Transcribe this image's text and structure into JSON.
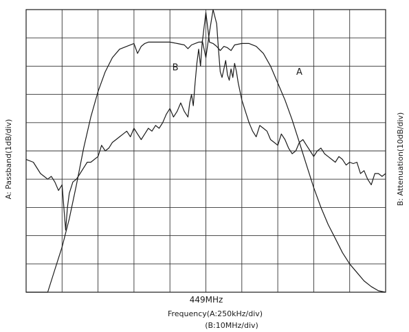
{
  "chart_data": {
    "type": "line",
    "center_label": "449MHz",
    "xlabel_line1": "Frequency(A:250kHz/div)",
    "xlabel_line2": "(B:10MHz/div)",
    "ylabel_left": "A: Passband(1dB/div)",
    "ylabel_right": "B: Attenuation(10dB/div)",
    "grid": true,
    "x_divisions": 10,
    "y_divisions": 10,
    "xlim": [
      -5,
      5
    ],
    "ylim": [
      0,
      10
    ],
    "series": [
      {
        "name": "A",
        "stroke": "#1a1a1a",
        "x": [
          -5.0,
          -4.4,
          -4.2,
          -4.0,
          -3.8,
          -3.6,
          -3.4,
          -3.2,
          -3.0,
          -2.8,
          -2.6,
          -2.4,
          -2.2,
          -2.0,
          -1.9,
          -1.8,
          -1.7,
          -1.6,
          -1.4,
          -1.2,
          -1.0,
          -0.8,
          -0.6,
          -0.5,
          -0.4,
          -0.3,
          -0.2,
          -0.1,
          0.0,
          0.1,
          0.2,
          0.3,
          0.4,
          0.5,
          0.6,
          0.7,
          0.8,
          1.0,
          1.2,
          1.4,
          1.6,
          1.8,
          2.0,
          2.2,
          2.4,
          2.6,
          2.8,
          3.0,
          3.2,
          3.4,
          3.6,
          3.8,
          4.0,
          4.2,
          4.4,
          4.6,
          4.8,
          5.0
        ],
        "y": [
          0.0,
          0.0,
          0.8,
          1.6,
          2.6,
          3.8,
          5.1,
          6.2,
          7.1,
          7.8,
          8.3,
          8.6,
          8.7,
          8.8,
          8.45,
          8.7,
          8.8,
          8.85,
          8.85,
          8.85,
          8.85,
          8.8,
          8.75,
          8.62,
          8.75,
          8.8,
          8.85,
          8.85,
          9.9,
          8.85,
          8.8,
          8.7,
          8.55,
          8.7,
          8.65,
          8.55,
          8.75,
          8.8,
          8.8,
          8.7,
          8.45,
          8.0,
          7.4,
          6.8,
          6.1,
          5.3,
          4.5,
          3.7,
          3.0,
          2.4,
          1.9,
          1.4,
          1.0,
          0.7,
          0.4,
          0.2,
          0.05,
          0.0
        ]
      },
      {
        "name": "B",
        "stroke": "#1a1a1a",
        "x": [
          -5.0,
          -4.8,
          -4.6,
          -4.5,
          -4.4,
          -4.3,
          -4.2,
          -4.1,
          -4.0,
          -3.95,
          -3.9,
          -3.85,
          -3.8,
          -3.7,
          -3.6,
          -3.5,
          -3.4,
          -3.3,
          -3.2,
          -3.0,
          -2.9,
          -2.8,
          -2.7,
          -2.6,
          -2.5,
          -2.4,
          -2.3,
          -2.2,
          -2.1,
          -2.0,
          -1.9,
          -1.8,
          -1.7,
          -1.6,
          -1.5,
          -1.4,
          -1.3,
          -1.2,
          -1.1,
          -1.0,
          -0.9,
          -0.8,
          -0.7,
          -0.6,
          -0.5,
          -0.45,
          -0.4,
          -0.35,
          -0.3,
          -0.25,
          -0.2,
          -0.15,
          -0.1,
          0.0,
          0.1,
          0.2,
          0.3,
          0.35,
          0.4,
          0.45,
          0.5,
          0.55,
          0.6,
          0.65,
          0.7,
          0.75,
          0.8,
          0.85,
          0.9,
          1.0,
          1.1,
          1.2,
          1.3,
          1.4,
          1.5,
          1.6,
          1.7,
          1.8,
          1.9,
          2.0,
          2.1,
          2.2,
          2.3,
          2.4,
          2.5,
          2.6,
          2.7,
          2.8,
          2.9,
          3.0,
          3.1,
          3.2,
          3.3,
          3.4,
          3.5,
          3.6,
          3.7,
          3.8,
          3.9,
          4.0,
          4.1,
          4.2,
          4.3,
          4.4,
          4.5,
          4.6,
          4.7,
          4.8,
          4.9,
          5.0
        ],
        "y": [
          4.7,
          4.6,
          4.2,
          4.1,
          4.0,
          4.1,
          3.9,
          3.6,
          3.8,
          3.0,
          2.2,
          3.0,
          3.5,
          3.9,
          4.0,
          4.2,
          4.4,
          4.6,
          4.6,
          4.8,
          5.2,
          5.0,
          5.1,
          5.3,
          5.4,
          5.5,
          5.6,
          5.7,
          5.5,
          5.8,
          5.6,
          5.4,
          5.6,
          5.8,
          5.7,
          5.9,
          5.8,
          6.0,
          6.3,
          6.5,
          6.2,
          6.4,
          6.7,
          6.4,
          6.2,
          6.7,
          7.0,
          6.6,
          7.4,
          8.1,
          8.6,
          8.0,
          8.9,
          8.3,
          9.2,
          10.0,
          9.5,
          8.6,
          7.8,
          7.6,
          7.9,
          8.2,
          7.7,
          7.5,
          7.9,
          7.6,
          8.1,
          7.8,
          7.4,
          6.8,
          6.4,
          6.0,
          5.7,
          5.5,
          5.9,
          5.8,
          5.7,
          5.4,
          5.3,
          5.2,
          5.6,
          5.4,
          5.1,
          4.9,
          5.0,
          5.3,
          5.4,
          5.2,
          5.0,
          4.8,
          5.0,
          5.1,
          4.9,
          4.8,
          4.7,
          4.6,
          4.8,
          4.7,
          4.5,
          4.6,
          4.55,
          4.6,
          4.2,
          4.3,
          4.0,
          3.8,
          4.2,
          4.2,
          4.1,
          4.2
        ]
      }
    ],
    "annotations": [
      {
        "text": "A",
        "x": 2.6,
        "y": 7.7
      },
      {
        "text": "B",
        "x": -0.85,
        "y": 7.85
      }
    ]
  }
}
